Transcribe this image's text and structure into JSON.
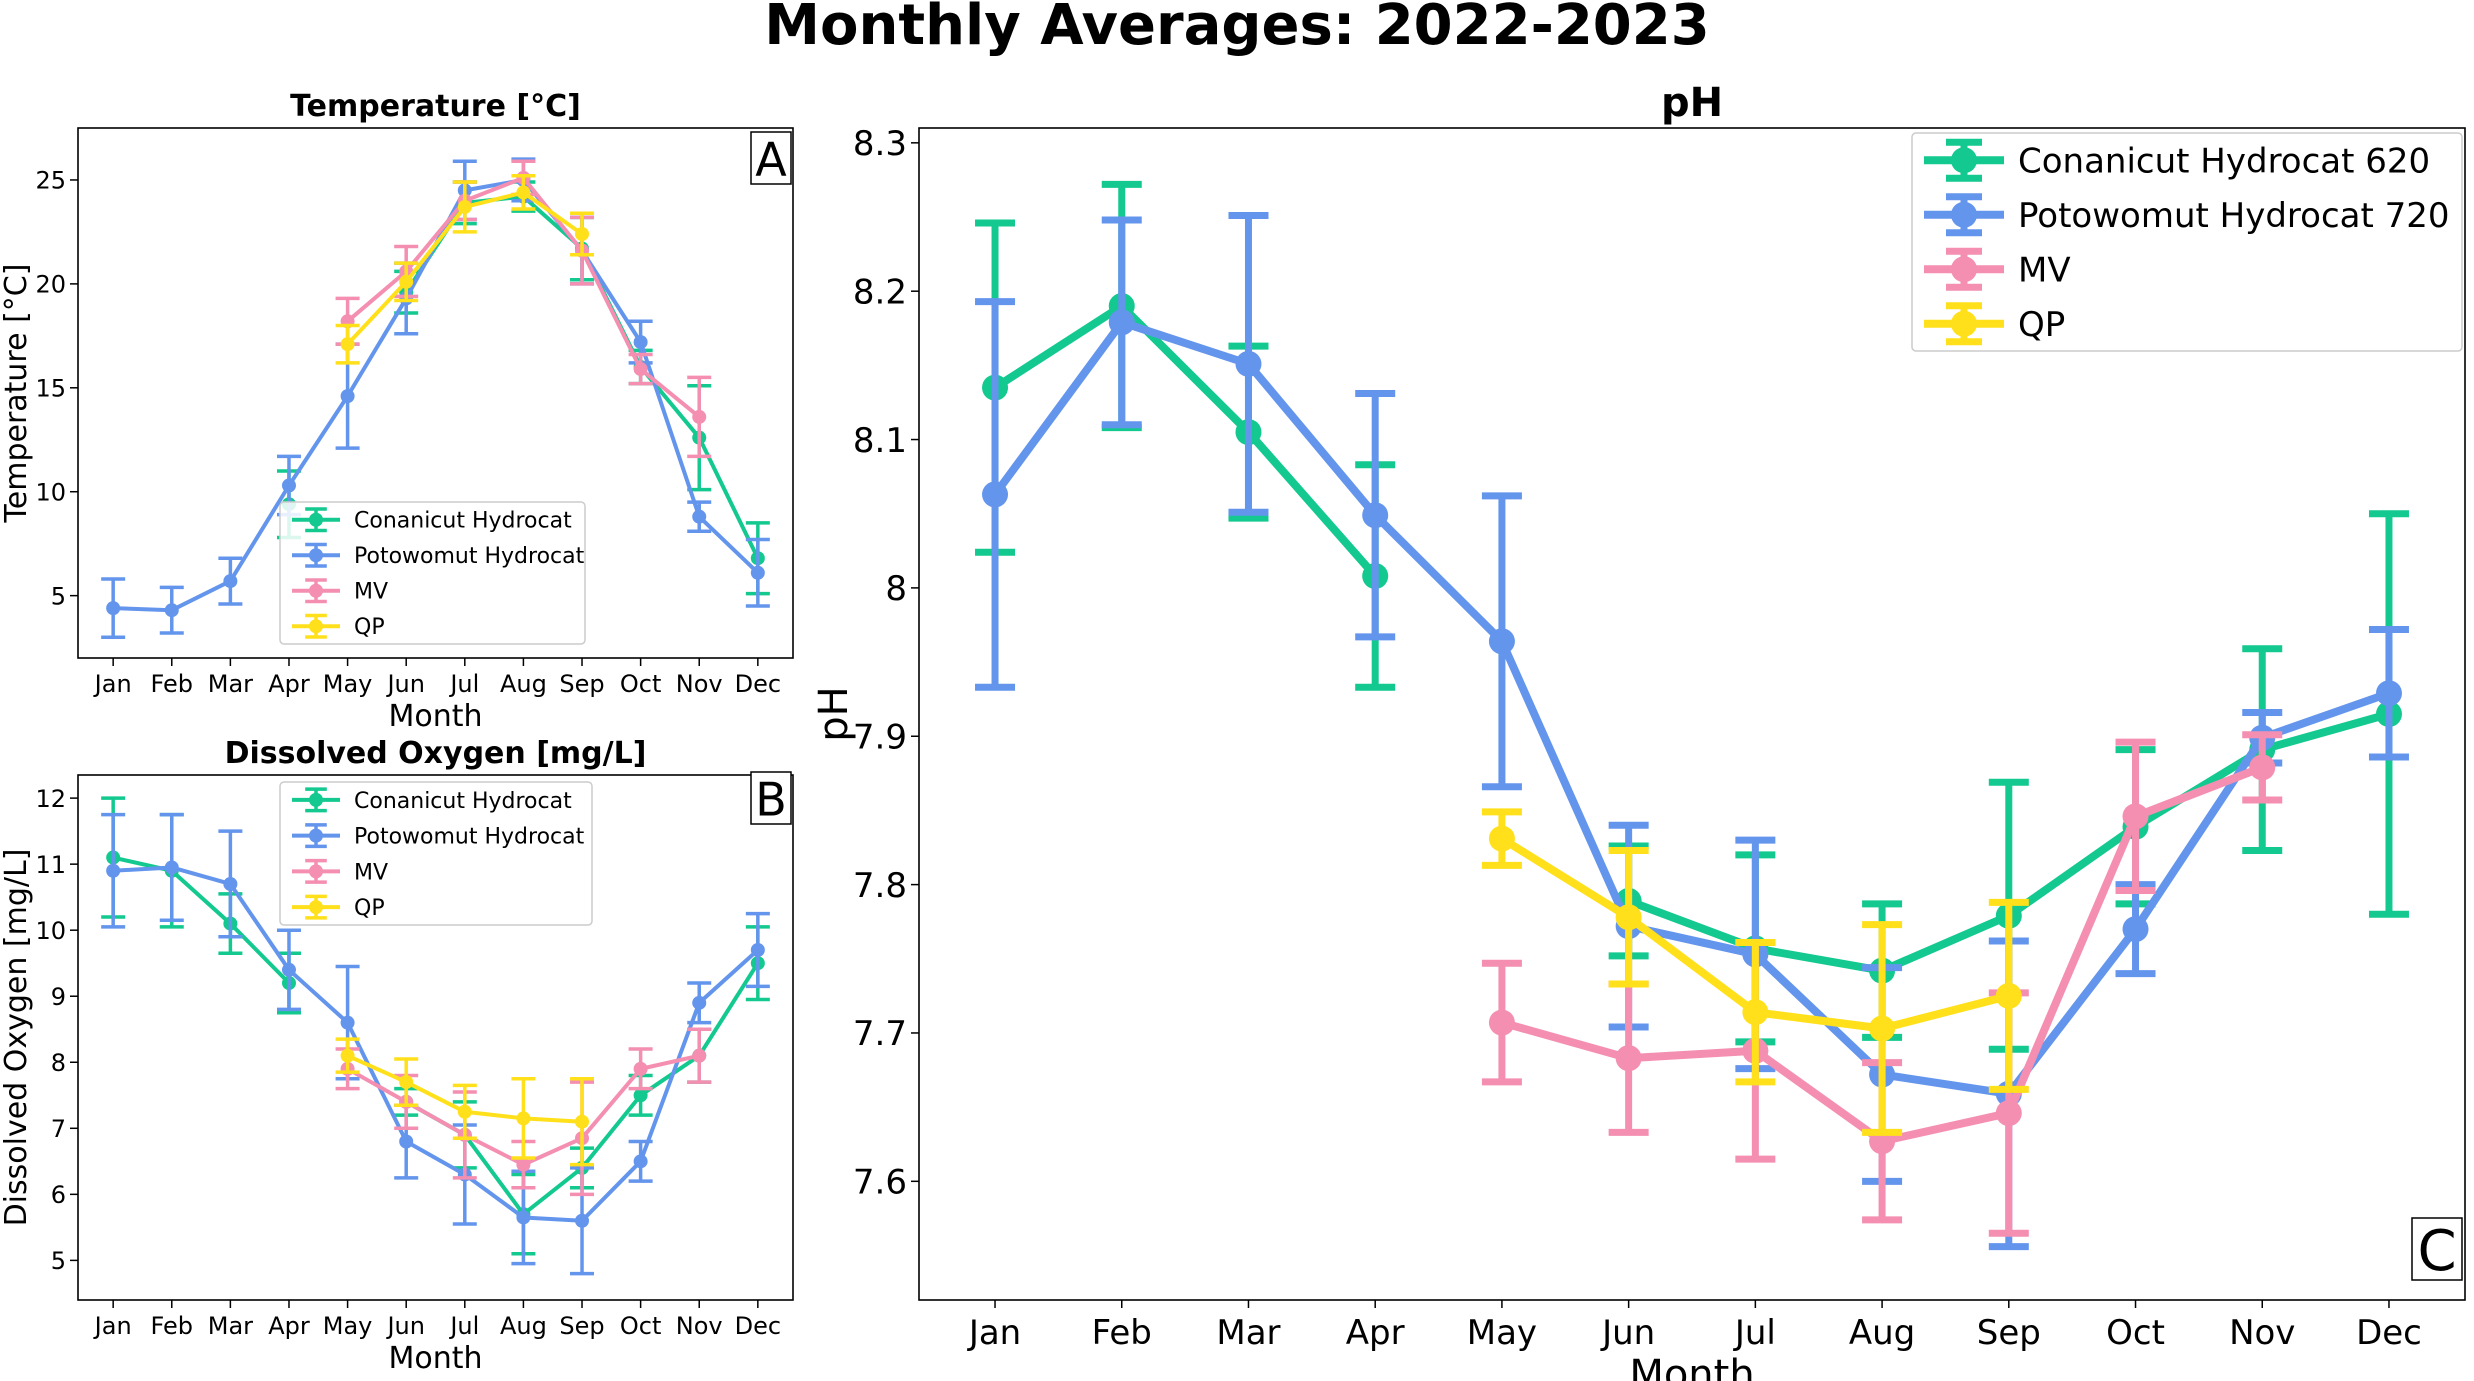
{
  "figure": {
    "title": "Monthly Averages: 2022-2023"
  },
  "chart_data": [
    {
      "id": "A",
      "type": "line",
      "title": "Temperature [°C]",
      "panel_label": "A",
      "xlabel": "Month",
      "ylabel": "Temperature [°C]",
      "categories": [
        "Jan",
        "Feb",
        "Mar",
        "Apr",
        "May",
        "Jun",
        "Jul",
        "Aug",
        "Sep",
        "Oct",
        "Nov",
        "Dec"
      ],
      "ylim": [
        2.0,
        27.5
      ],
      "yticks": [
        5,
        10,
        15,
        20,
        25
      ],
      "legend_loc": "lower-center",
      "series": [
        {
          "name": "Conanicut Hydrocat",
          "color": "#13c98f",
          "values": [
            null,
            null,
            null,
            9.4,
            null,
            19.6,
            23.9,
            24.2,
            21.7,
            16.0,
            12.6,
            6.8
          ],
          "err": [
            null,
            null,
            null,
            1.6,
            null,
            1.0,
            1.0,
            0.7,
            1.5,
            0.8,
            2.5,
            1.7
          ]
        },
        {
          "name": "Potowomut Hydrocat",
          "color": "#6495ed",
          "values": [
            4.4,
            4.3,
            5.7,
            10.3,
            14.6,
            19.3,
            24.5,
            25.0,
            21.6,
            17.2,
            8.8,
            6.1
          ],
          "err": [
            1.4,
            1.1,
            1.1,
            1.4,
            2.5,
            1.7,
            1.4,
            1.0,
            1.6,
            1.0,
            0.7,
            1.6
          ]
        },
        {
          "name": "MV",
          "color": "#f48fb1",
          "values": [
            null,
            null,
            null,
            null,
            18.2,
            20.6,
            24.0,
            25.1,
            21.6,
            15.9,
            13.6,
            null
          ],
          "err": [
            null,
            null,
            null,
            null,
            1.1,
            1.2,
            0.9,
            0.8,
            1.6,
            0.7,
            1.9,
            null
          ]
        },
        {
          "name": "QP",
          "color": "#ffe01a",
          "values": [
            null,
            null,
            null,
            null,
            17.1,
            20.1,
            23.7,
            24.4,
            22.4,
            null,
            null,
            null
          ],
          "err": [
            null,
            null,
            null,
            null,
            0.9,
            0.9,
            1.2,
            0.8,
            1.0,
            null,
            null,
            null
          ]
        }
      ]
    },
    {
      "id": "B",
      "type": "line",
      "title": "Dissolved Oxygen [mg/L]",
      "panel_label": "B",
      "xlabel": "Month",
      "ylabel": "Dissolved Oxygen [mg/L]",
      "categories": [
        "Jan",
        "Feb",
        "Mar",
        "Apr",
        "May",
        "Jun",
        "Jul",
        "Aug",
        "Sep",
        "Oct",
        "Nov",
        "Dec"
      ],
      "ylim": [
        4.4,
        12.35
      ],
      "yticks": [
        5,
        6,
        7,
        8,
        9,
        10,
        11,
        12
      ],
      "legend_loc": "upper-center",
      "series": [
        {
          "name": "Conanicut Hydrocat",
          "color": "#13c98f",
          "values": [
            11.1,
            10.9,
            10.1,
            9.2,
            null,
            7.4,
            6.9,
            5.7,
            6.4,
            7.5,
            8.1,
            9.5
          ],
          "err": [
            0.9,
            0.85,
            0.45,
            0.45,
            null,
            0.2,
            0.5,
            0.6,
            0.3,
            0.3,
            0.4,
            0.55
          ]
        },
        {
          "name": "Potowomut Hydrocat",
          "color": "#6495ed",
          "values": [
            10.9,
            10.95,
            10.7,
            9.4,
            8.6,
            6.8,
            6.3,
            5.65,
            5.6,
            6.5,
            8.9,
            9.7
          ],
          "err": [
            0.85,
            0.8,
            0.8,
            0.6,
            0.85,
            0.55,
            0.75,
            0.7,
            0.8,
            0.3,
            0.3,
            0.55
          ]
        },
        {
          "name": "MV",
          "color": "#f48fb1",
          "values": [
            null,
            null,
            null,
            null,
            7.9,
            7.4,
            6.9,
            6.45,
            6.85,
            7.9,
            8.1,
            null
          ],
          "err": [
            null,
            null,
            null,
            null,
            0.3,
            0.4,
            0.65,
            0.35,
            0.85,
            0.3,
            0.4,
            null
          ]
        },
        {
          "name": "QP",
          "color": "#ffe01a",
          "values": [
            null,
            null,
            null,
            null,
            8.1,
            7.7,
            7.25,
            7.15,
            7.1,
            null,
            null,
            null
          ],
          "err": [
            null,
            null,
            null,
            null,
            0.25,
            0.35,
            0.4,
            0.6,
            0.65,
            null,
            null,
            null
          ]
        }
      ]
    },
    {
      "id": "C",
      "type": "line",
      "title": "pH",
      "panel_label": "C",
      "xlabel": "Month",
      "ylabel": "pH",
      "categories": [
        "Jan",
        "Feb",
        "Mar",
        "Apr",
        "May",
        "Jun",
        "Jul",
        "Aug",
        "Sep",
        "Oct",
        "Nov",
        "Dec"
      ],
      "ylim": [
        7.52,
        8.31
      ],
      "yticks": [
        7.6,
        7.7,
        7.8,
        7.9,
        8.0,
        8.1,
        8.2,
        8.3
      ],
      "legend_loc": "upper-right",
      "series": [
        {
          "name": "Conanicut Hydrocat 620",
          "color": "#13c98f",
          "values": [
            8.135,
            8.19,
            8.105,
            8.008,
            null,
            7.789,
            7.757,
            7.742,
            7.779,
            7.839,
            7.891,
            7.915
          ],
          "err": [
            0.111,
            0.082,
            0.058,
            0.075,
            null,
            0.037,
            0.063,
            0.045,
            0.09,
            0.052,
            0.068,
            0.135
          ]
        },
        {
          "name": "Potowomut Hydrocat 720",
          "color": "#6495ed",
          "values": [
            8.063,
            8.179,
            8.151,
            8.049,
            7.964,
            7.772,
            7.753,
            7.672,
            7.659,
            7.77,
            7.899,
            7.929
          ],
          "err": [
            0.13,
            0.069,
            0.1,
            0.082,
            0.098,
            0.068,
            0.077,
            0.072,
            0.103,
            0.03,
            0.017,
            0.043
          ]
        },
        {
          "name": "MV",
          "color": "#f48fb1",
          "values": [
            null,
            null,
            null,
            null,
            7.707,
            7.683,
            7.688,
            7.627,
            7.646,
            7.846,
            7.879,
            null
          ],
          "err": [
            null,
            null,
            null,
            null,
            0.04,
            0.05,
            0.073,
            0.053,
            0.081,
            0.05,
            0.022,
            null
          ]
        },
        {
          "name": "QP",
          "color": "#ffe01a",
          "values": [
            null,
            null,
            null,
            null,
            7.831,
            7.778,
            7.714,
            7.703,
            7.725,
            null,
            null,
            null
          ],
          "err": [
            null,
            null,
            null,
            null,
            0.018,
            0.045,
            0.047,
            0.07,
            0.063,
            null,
            null,
            null
          ]
        }
      ]
    }
  ]
}
